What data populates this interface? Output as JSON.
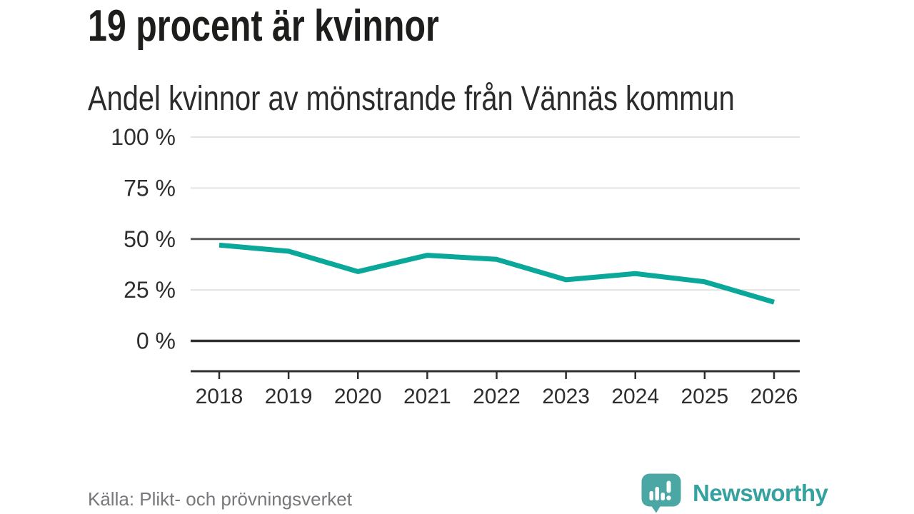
{
  "header": {
    "title": "19 procent är kvinnor",
    "subtitle": "Andel kvinnor av mönstrande från Vännäs kommun"
  },
  "chart_data": {
    "type": "line",
    "title": "19 procent är kvinnor",
    "subtitle": "Andel kvinnor av mönstrande från Vännäs kommun",
    "categories": [
      "2018",
      "2019",
      "2020",
      "2021",
      "2022",
      "2023",
      "2024",
      "2025",
      "2026"
    ],
    "series": [
      {
        "name": "andel-kvinnor",
        "color": "#0aa79b",
        "values": [
          47,
          44,
          34,
          42,
          40,
          30,
          33,
          29,
          19
        ]
      }
    ],
    "unit": "%",
    "ylim": [
      0,
      100
    ],
    "yticks": [
      0,
      25,
      50,
      75,
      100
    ],
    "ytick_suffix": " %",
    "xlabel": "",
    "ylabel": "",
    "grid": true,
    "legend": "none",
    "reference_line_y": 50,
    "latest_value_pct": 19
  },
  "footer": {
    "source": "Källa: Plikt- och prövningsverket",
    "brand": "Newsworthy"
  },
  "colors": {
    "accent_teal": "#0aa79b",
    "logo_teal": "#4aa7a4",
    "wordmark_teal": "#35a2a0",
    "text_dark": "#1d1d1b",
    "text_medium": "#2e2e2e",
    "grid_light": "#e2e2e2",
    "grid_ref": "#5a5a5e",
    "axis_dark": "#2f2f2f",
    "source_gray": "#77777c",
    "icon_bars_white": "#ffffff"
  },
  "icons": {
    "logo": "newsworthy-speech-bubble-bar-chart-icon"
  }
}
